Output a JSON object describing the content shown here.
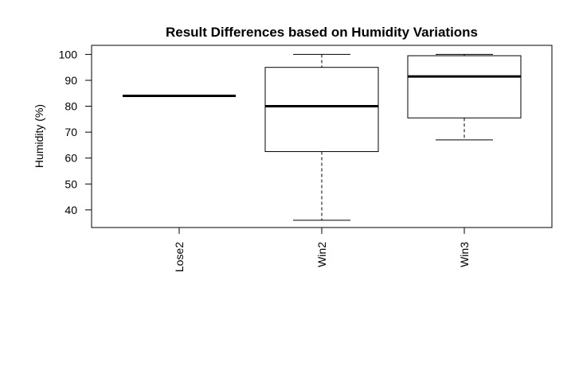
{
  "chart_data": {
    "type": "boxplot",
    "title": "Result Differences based on Humidity Variations",
    "xlabel": "",
    "ylabel": "Humidity (%)",
    "ylim": [
      33.2,
      103.5
    ],
    "yticks": [
      40,
      50,
      60,
      70,
      80,
      90,
      100
    ],
    "categories": [
      "Lose2",
      "Win2",
      "Win3"
    ],
    "boxes": [
      {
        "category": "Lose2",
        "min": 84,
        "q1": 84,
        "median": 84,
        "q3": 84,
        "max": 84
      },
      {
        "category": "Win2",
        "min": 36,
        "q1": 62.5,
        "median": 80,
        "q3": 95,
        "max": 100
      },
      {
        "category": "Win3",
        "min": 67,
        "q1": 75.5,
        "median": 91.5,
        "q3": 99.5,
        "max": 100
      }
    ],
    "grid": false,
    "legend": "none"
  }
}
